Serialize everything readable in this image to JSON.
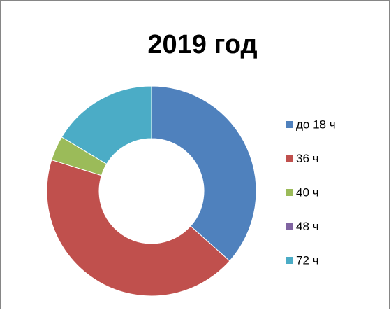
{
  "chart_data": {
    "type": "donut",
    "title": "2019 год",
    "categories": [
      "до 18 ч",
      "36 ч",
      "40 ч",
      "48 ч",
      "72 ч"
    ],
    "values": [
      36.6,
      43.2,
      3.8,
      0,
      16.4
    ],
    "colors": [
      "#4f81bd",
      "#c0504d",
      "#9bbb59",
      "#8064a2",
      "#4bacc6"
    ],
    "legend": "right"
  }
}
